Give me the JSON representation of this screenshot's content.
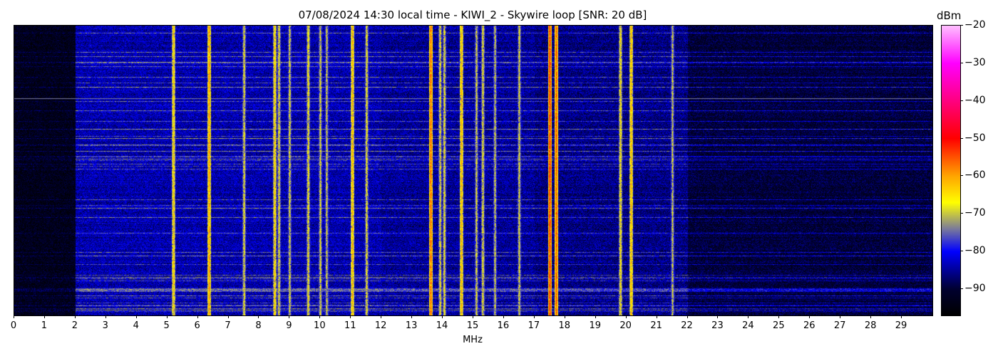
{
  "chart_data": {
    "type": "heatmap",
    "title": "07/08/2024 14:30 local time - KIWI_2 - Skywire loop [SNR: 20 dB]",
    "xlabel": "MHz",
    "ylabel": "",
    "xlim": [
      0,
      30
    ],
    "x_ticks": [
      "0",
      "1",
      "2",
      "3",
      "4",
      "5",
      "6",
      "7",
      "8",
      "9",
      "10",
      "11",
      "12",
      "13",
      "14",
      "15",
      "16",
      "17",
      "18",
      "19",
      "20",
      "21",
      "22",
      "23",
      "24",
      "25",
      "26",
      "27",
      "28",
      "29"
    ],
    "colorbar": {
      "label": "dBm",
      "range": [
        -97,
        -20
      ],
      "ticks": [
        "-20",
        "-30",
        "-40",
        "-50",
        "-60",
        "-70",
        "-80",
        "-90"
      ],
      "colormap": [
        {
          "dbm": -97,
          "color": "#000000"
        },
        {
          "dbm": -90,
          "color": "#000030"
        },
        {
          "dbm": -80,
          "color": "#0000ff"
        },
        {
          "dbm": -74,
          "color": "#7a7a9a"
        },
        {
          "dbm": -67,
          "color": "#ffff00"
        },
        {
          "dbm": -60,
          "color": "#ffa500"
        },
        {
          "dbm": -50,
          "color": "#ff0000"
        },
        {
          "dbm": -40,
          "color": "#ff0080"
        },
        {
          "dbm": -30,
          "color": "#ff00ff"
        },
        {
          "dbm": -20,
          "color": "#ffc0ff"
        }
      ]
    },
    "background_dbm": [
      {
        "from": 0,
        "to": 2,
        "level": -93
      },
      {
        "from": 2,
        "to": 12,
        "level": -84
      },
      {
        "from": 12,
        "to": 17,
        "level": -85
      },
      {
        "from": 17,
        "to": 22,
        "level": -86
      },
      {
        "from": 22,
        "to": 30,
        "level": -90
      }
    ],
    "signals": [
      {
        "mhz": 5.2,
        "dbm": -62
      },
      {
        "mhz": 6.35,
        "dbm": -58
      },
      {
        "mhz": 7.5,
        "dbm": -66
      },
      {
        "mhz": 8.5,
        "dbm": -62
      },
      {
        "mhz": 8.65,
        "dbm": -66
      },
      {
        "mhz": 9.0,
        "dbm": -67
      },
      {
        "mhz": 9.6,
        "dbm": -65
      },
      {
        "mhz": 10.0,
        "dbm": -67
      },
      {
        "mhz": 10.2,
        "dbm": -68
      },
      {
        "mhz": 11.05,
        "dbm": -60
      },
      {
        "mhz": 11.5,
        "dbm": -66
      },
      {
        "mhz": 13.6,
        "dbm": -55
      },
      {
        "mhz": 13.9,
        "dbm": -66
      },
      {
        "mhz": 14.05,
        "dbm": -66
      },
      {
        "mhz": 14.6,
        "dbm": -60
      },
      {
        "mhz": 15.1,
        "dbm": -67
      },
      {
        "mhz": 15.3,
        "dbm": -66
      },
      {
        "mhz": 15.7,
        "dbm": -68
      },
      {
        "mhz": 16.5,
        "dbm": -67
      },
      {
        "mhz": 17.5,
        "dbm": -52
      },
      {
        "mhz": 17.7,
        "dbm": -54
      },
      {
        "mhz": 19.8,
        "dbm": -64
      },
      {
        "mhz": 20.15,
        "dbm": -60
      },
      {
        "mhz": 21.5,
        "dbm": -68
      }
    ]
  }
}
